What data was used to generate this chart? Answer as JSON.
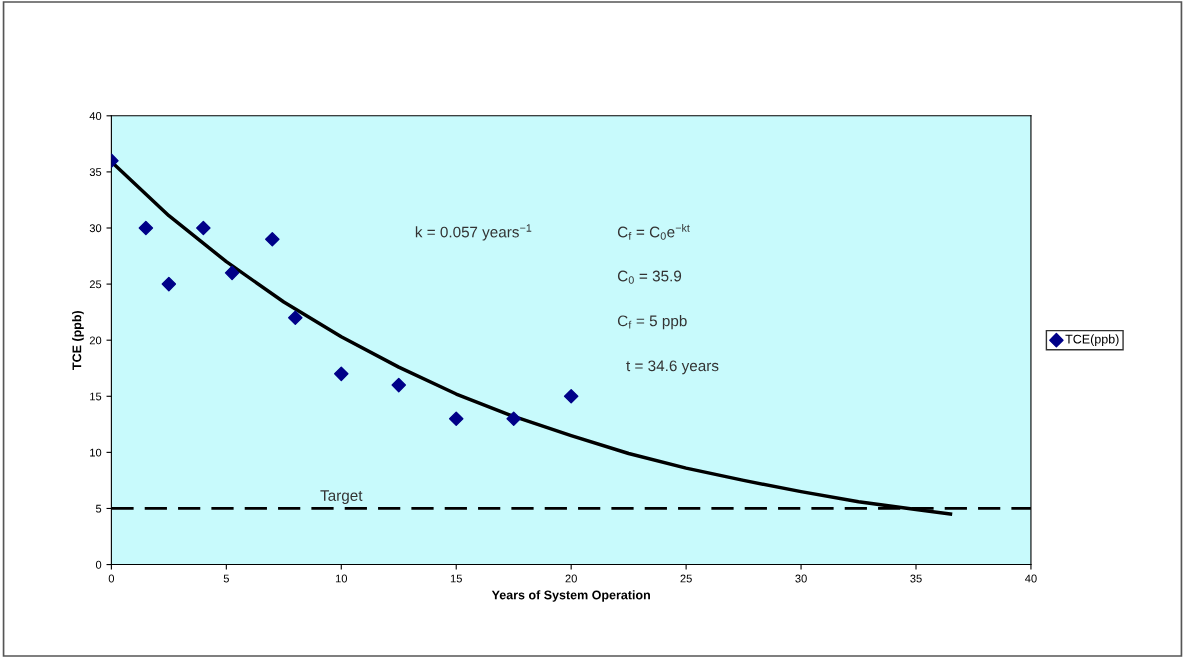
{
  "chart_data": {
    "type": "scatter",
    "xlabel": "Years of System Operation",
    "ylabel": "TCE (ppb)",
    "xlim": [
      0,
      40
    ],
    "ylim": [
      0,
      40
    ],
    "xticks": [
      0,
      5,
      10,
      15,
      20,
      25,
      30,
      35,
      40
    ],
    "yticks": [
      0,
      5,
      10,
      15,
      20,
      25,
      30,
      35,
      40
    ],
    "grid": false,
    "legend": "right",
    "series": [
      {
        "name": "TCE(ppb)",
        "marker": "diamond",
        "color": "#000088",
        "x": [
          0,
          1.5,
          2.5,
          4,
          5.25,
          7,
          8,
          10,
          12.5,
          15,
          17.5,
          20
        ],
        "values": [
          36,
          30,
          25,
          30,
          26,
          29,
          22,
          17,
          16,
          13,
          13,
          15
        ]
      },
      {
        "type": "line",
        "marker": "none",
        "line_style": "solid",
        "color": "#000000",
        "x": [
          0,
          2.5,
          5,
          7.5,
          10,
          12.5,
          15,
          17.5,
          20,
          22.5,
          25,
          27.5,
          30,
          32.5,
          35,
          36.5
        ],
        "values": [
          35.9,
          31.1,
          27.0,
          23.4,
          20.3,
          17.6,
          15.2,
          13.2,
          11.5,
          9.9,
          8.6,
          7.5,
          6.5,
          5.6,
          4.9,
          4.5
        ]
      }
    ],
    "ref_lines": [
      {
        "axis": "y",
        "value": 5,
        "label": "Target",
        "color": "#000000",
        "line_style": "dashed"
      }
    ],
    "annotations": [
      "k = 0.057 years$^{−1}$",
      "C$_{f}$ = C$_{0}$e$^{−kt}$",
      "C$_{0}$ = 35.9",
      "C$_{f}$ = 5 ppb",
      " t = 34.6 years"
    ]
  }
}
